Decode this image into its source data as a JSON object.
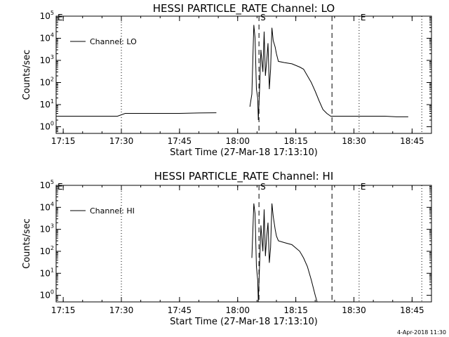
{
  "chart_data": [
    {
      "type": "line",
      "title": "HESSI PARTICLE_RATE Channel: LO",
      "xlabel": "Start Time (27-Mar-18 17:13:10)",
      "ylabel": "Counts/sec",
      "y_scale": "log",
      "ylim": [
        0.5,
        100000
      ],
      "xlim": [
        "17:13:10",
        "18:50:00"
      ],
      "x_tick_labels": [
        "17:15",
        "17:30",
        "17:45",
        "18:00",
        "18:15",
        "18:30",
        "18:45"
      ],
      "y_tick_labels": [
        "10^0",
        "10^1",
        "10^2",
        "10^3",
        "10^4",
        "10^5"
      ],
      "legend": {
        "entries": [
          "Channel: LO"
        ],
        "placement": "top-left"
      },
      "annotations": [
        {
          "label": "E",
          "time": "17:13:10",
          "style": "dotted"
        },
        {
          "label": "",
          "time": "17:30:00",
          "style": "dotted"
        },
        {
          "label": "S",
          "time": "18:05:30",
          "style": "dashed"
        },
        {
          "label": "",
          "time": "18:24:20",
          "style": "dashed"
        },
        {
          "label": "E",
          "time": "18:31:20",
          "style": "dotted"
        },
        {
          "label": "",
          "time": "18:47:30",
          "style": "dotted"
        }
      ],
      "series": [
        {
          "name": "Channel: LO",
          "segments": [
            [
              [
                "17:13:30",
                3
              ],
              [
                "17:15:00",
                3
              ],
              [
                "17:20:00",
                3
              ],
              [
                "17:25:00",
                3
              ],
              [
                "17:29:00",
                3
              ],
              [
                "17:31:00",
                4
              ],
              [
                "17:35:00",
                4
              ],
              [
                "17:40:00",
                4
              ],
              [
                "17:45:00",
                4
              ],
              [
                "17:50:00",
                4.2
              ],
              [
                "17:54:30",
                4.3
              ]
            ],
            [
              [
                "18:03:10",
                8
              ],
              [
                "18:03:40",
                30
              ],
              [
                "18:04:10",
                40000
              ],
              [
                "18:04:30",
                10000
              ],
              [
                "18:04:50",
                50
              ],
              [
                "18:05:10",
                20
              ],
              [
                "18:05:20",
                2
              ],
              [
                "18:05:40",
                60
              ],
              [
                "18:06:00",
                3000
              ],
              [
                "18:06:30",
                300
              ],
              [
                "18:06:50",
                20000
              ],
              [
                "18:07:10",
                200
              ],
              [
                "18:07:30",
                1000
              ],
              [
                "18:07:50",
                6000
              ],
              [
                "18:08:10",
                50
              ],
              [
                "18:08:30",
                400
              ],
              [
                "18:08:50",
                30000
              ],
              [
                "18:09:10",
                8000
              ],
              [
                "18:09:40",
                4000
              ],
              [
                "18:10:00",
                2000
              ],
              [
                "18:10:30",
                900
              ],
              [
                "18:12:00",
                800
              ],
              [
                "18:14:00",
                700
              ],
              [
                "18:16:00",
                500
              ],
              [
                "18:17:00",
                400
              ],
              [
                "18:18:00",
                200
              ],
              [
                "18:19:00",
                100
              ],
              [
                "18:20:00",
                40
              ],
              [
                "18:21:00",
                15
              ],
              [
                "18:22:00",
                6
              ],
              [
                "18:23:00",
                4
              ],
              [
                "18:24:00",
                3
              ],
              [
                "18:26:00",
                3
              ],
              [
                "18:28:00",
                3
              ],
              [
                "18:30:00",
                3
              ],
              [
                "18:32:00",
                3
              ],
              [
                "18:35:00",
                3
              ],
              [
                "18:38:00",
                3
              ],
              [
                "18:41:00",
                2.8
              ],
              [
                "18:44:00",
                2.8
              ]
            ]
          ]
        }
      ]
    },
    {
      "type": "line",
      "title": "HESSI PARTICLE_RATE Channel: HI",
      "xlabel": "Start Time (27-Mar-18 17:13:10)",
      "ylabel": "Counts/sec",
      "y_scale": "log",
      "ylim": [
        0.5,
        100000
      ],
      "xlim": [
        "17:13:10",
        "18:50:00"
      ],
      "x_tick_labels": [
        "17:15",
        "17:30",
        "17:45",
        "18:00",
        "18:15",
        "18:30",
        "18:45"
      ],
      "y_tick_labels": [
        "10^0",
        "10^1",
        "10^2",
        "10^3",
        "10^4",
        "10^5"
      ],
      "legend": {
        "entries": [
          "Channel: HI"
        ],
        "placement": "top-left"
      },
      "annotations": [
        {
          "label": "E",
          "time": "17:13:10",
          "style": "dotted"
        },
        {
          "label": "",
          "time": "17:30:00",
          "style": "dotted"
        },
        {
          "label": "S",
          "time": "18:05:30",
          "style": "dashed"
        },
        {
          "label": "",
          "time": "18:24:20",
          "style": "dashed"
        },
        {
          "label": "E",
          "time": "18:31:20",
          "style": "dotted"
        },
        {
          "label": "",
          "time": "18:47:30",
          "style": "dotted"
        }
      ],
      "series": [
        {
          "name": "Channel: HI",
          "segments": [
            [
              [
                "18:03:40",
                50
              ],
              [
                "18:04:10",
                15000
              ],
              [
                "18:04:30",
                5000
              ],
              [
                "18:04:50",
                20
              ],
              [
                "18:05:10",
                5
              ],
              [
                "18:05:20",
                0.5
              ],
              [
                "18:05:40",
                30
              ],
              [
                "18:06:00",
                1500
              ],
              [
                "18:06:30",
                100
              ],
              [
                "18:06:50",
                8000
              ],
              [
                "18:07:10",
                60
              ],
              [
                "18:07:30",
                500
              ],
              [
                "18:07:50",
                2000
              ],
              [
                "18:08:10",
                30
              ],
              [
                "18:08:30",
                150
              ],
              [
                "18:08:50",
                15000
              ],
              [
                "18:09:10",
                4000
              ],
              [
                "18:09:40",
                1000
              ],
              [
                "18:10:00",
                500
              ],
              [
                "18:10:30",
                300
              ],
              [
                "18:12:00",
                250
              ],
              [
                "18:14:00",
                200
              ],
              [
                "18:16:00",
                100
              ],
              [
                "18:17:00",
                50
              ],
              [
                "18:18:00",
                20
              ],
              [
                "18:19:00",
                5
              ],
              [
                "18:20:00",
                1
              ],
              [
                "18:20:30",
                0.5
              ]
            ]
          ]
        }
      ]
    }
  ],
  "footer": {
    "timestamp": "4-Apr-2018 11:30"
  }
}
